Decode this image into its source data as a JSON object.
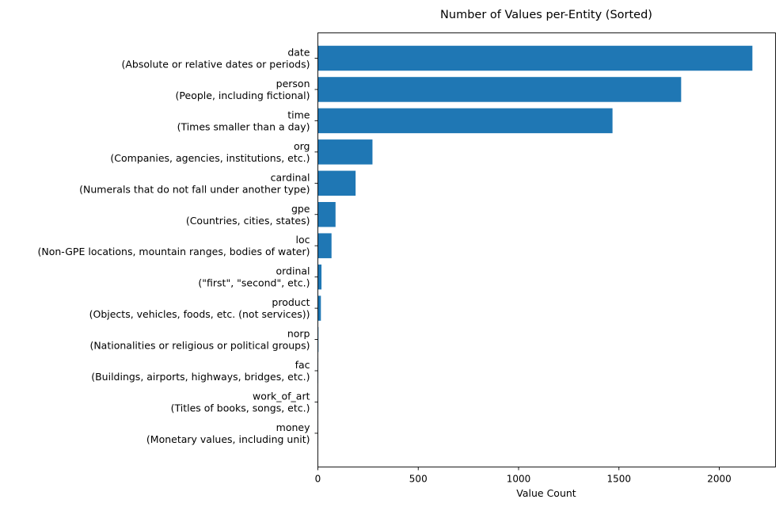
{
  "chart_data": {
    "type": "bar",
    "orientation": "horizontal",
    "title": "Number of Values per-Entity (Sorted)",
    "xlabel": "Value Count",
    "ylabel": "",
    "xlim": [
      0,
      2280
    ],
    "xticks": [
      0,
      500,
      1000,
      1500,
      2000
    ],
    "grid": false,
    "bar_color": "#1f77b4",
    "categories": [
      {
        "name": "date",
        "description": "(Absolute or relative dates or periods)"
      },
      {
        "name": "person",
        "description": "(People, including fictional)"
      },
      {
        "name": "time",
        "description": "(Times smaller than a day)"
      },
      {
        "name": "org",
        "description": "(Companies, agencies, institutions, etc.)"
      },
      {
        "name": "cardinal",
        "description": "(Numerals that do not fall under another type)"
      },
      {
        "name": "gpe",
        "description": "(Countries, cities, states)"
      },
      {
        "name": "loc",
        "description": "(Non-GPE locations, mountain ranges, bodies of water)"
      },
      {
        "name": "ordinal",
        "description": "(\"first\", \"second\", etc.)"
      },
      {
        "name": "product",
        "description": "(Objects, vehicles, foods, etc. (not services))"
      },
      {
        "name": "norp",
        "description": "(Nationalities or religious or political groups)"
      },
      {
        "name": "fac",
        "description": "(Buildings, airports, highways, bridges, etc.)"
      },
      {
        "name": "work_of_art",
        "description": "(Titles of books, songs, etc.)"
      },
      {
        "name": "money",
        "description": "(Monetary values, including unit)"
      }
    ],
    "values": [
      2165,
      1810,
      1468,
      272,
      188,
      88,
      68,
      18,
      15,
      3,
      2,
      1,
      1
    ]
  }
}
